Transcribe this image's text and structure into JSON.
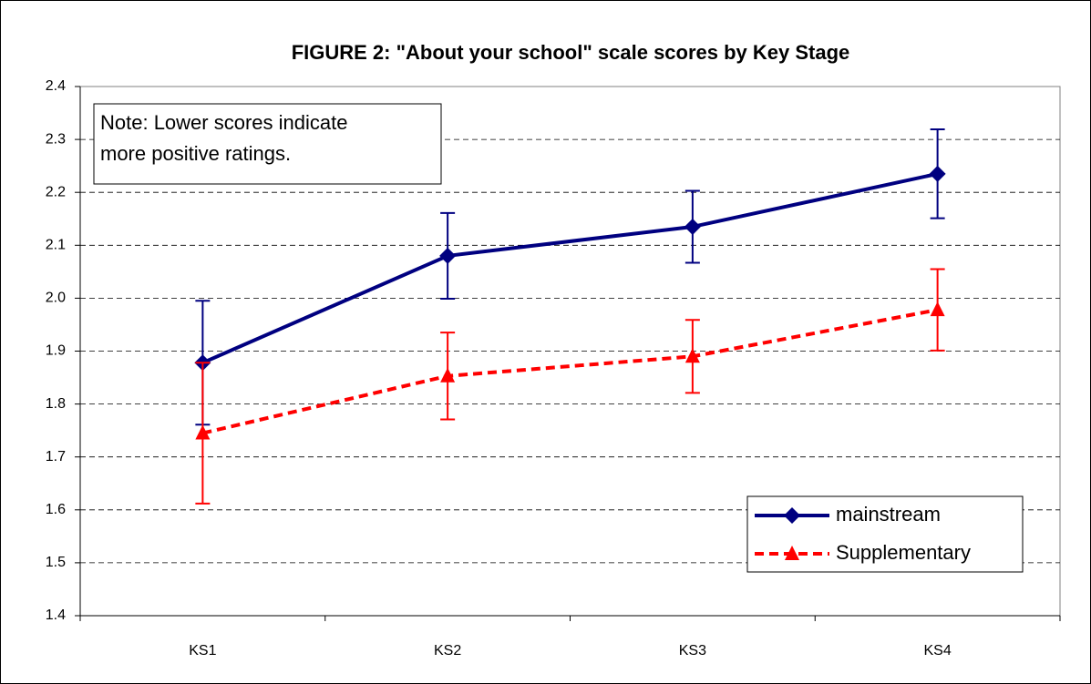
{
  "chart_data": {
    "type": "line",
    "title": "FIGURE 2: \"About your school\" scale scores by Key Stage",
    "annotation": [
      "Note: Lower scores indicate",
      "more positive ratings."
    ],
    "categories": [
      "KS1",
      "KS2",
      "KS3",
      "KS4"
    ],
    "series": [
      {
        "name": "mainstream",
        "color": "#000080",
        "marker": "diamond",
        "dash": false,
        "values": [
          1.878,
          2.08,
          2.135,
          2.235
        ],
        "errors": [
          0.117,
          0.081,
          0.068,
          0.084
        ]
      },
      {
        "name": "Supplementary",
        "color": "#ff0000",
        "marker": "triangle",
        "dash": true,
        "values": [
          1.745,
          1.853,
          1.89,
          1.978
        ],
        "errors": [
          0.133,
          0.082,
          0.069,
          0.077
        ]
      }
    ],
    "ylim": [
      1.4,
      2.4
    ],
    "yticks": [
      1.4,
      1.5,
      1.6,
      1.7,
      1.8,
      1.9,
      {
        "value": 2,
        "label": "2.0"
      },
      2.1,
      2.2,
      2.3,
      2.4
    ],
    "grid": true,
    "legend": "lower right"
  }
}
